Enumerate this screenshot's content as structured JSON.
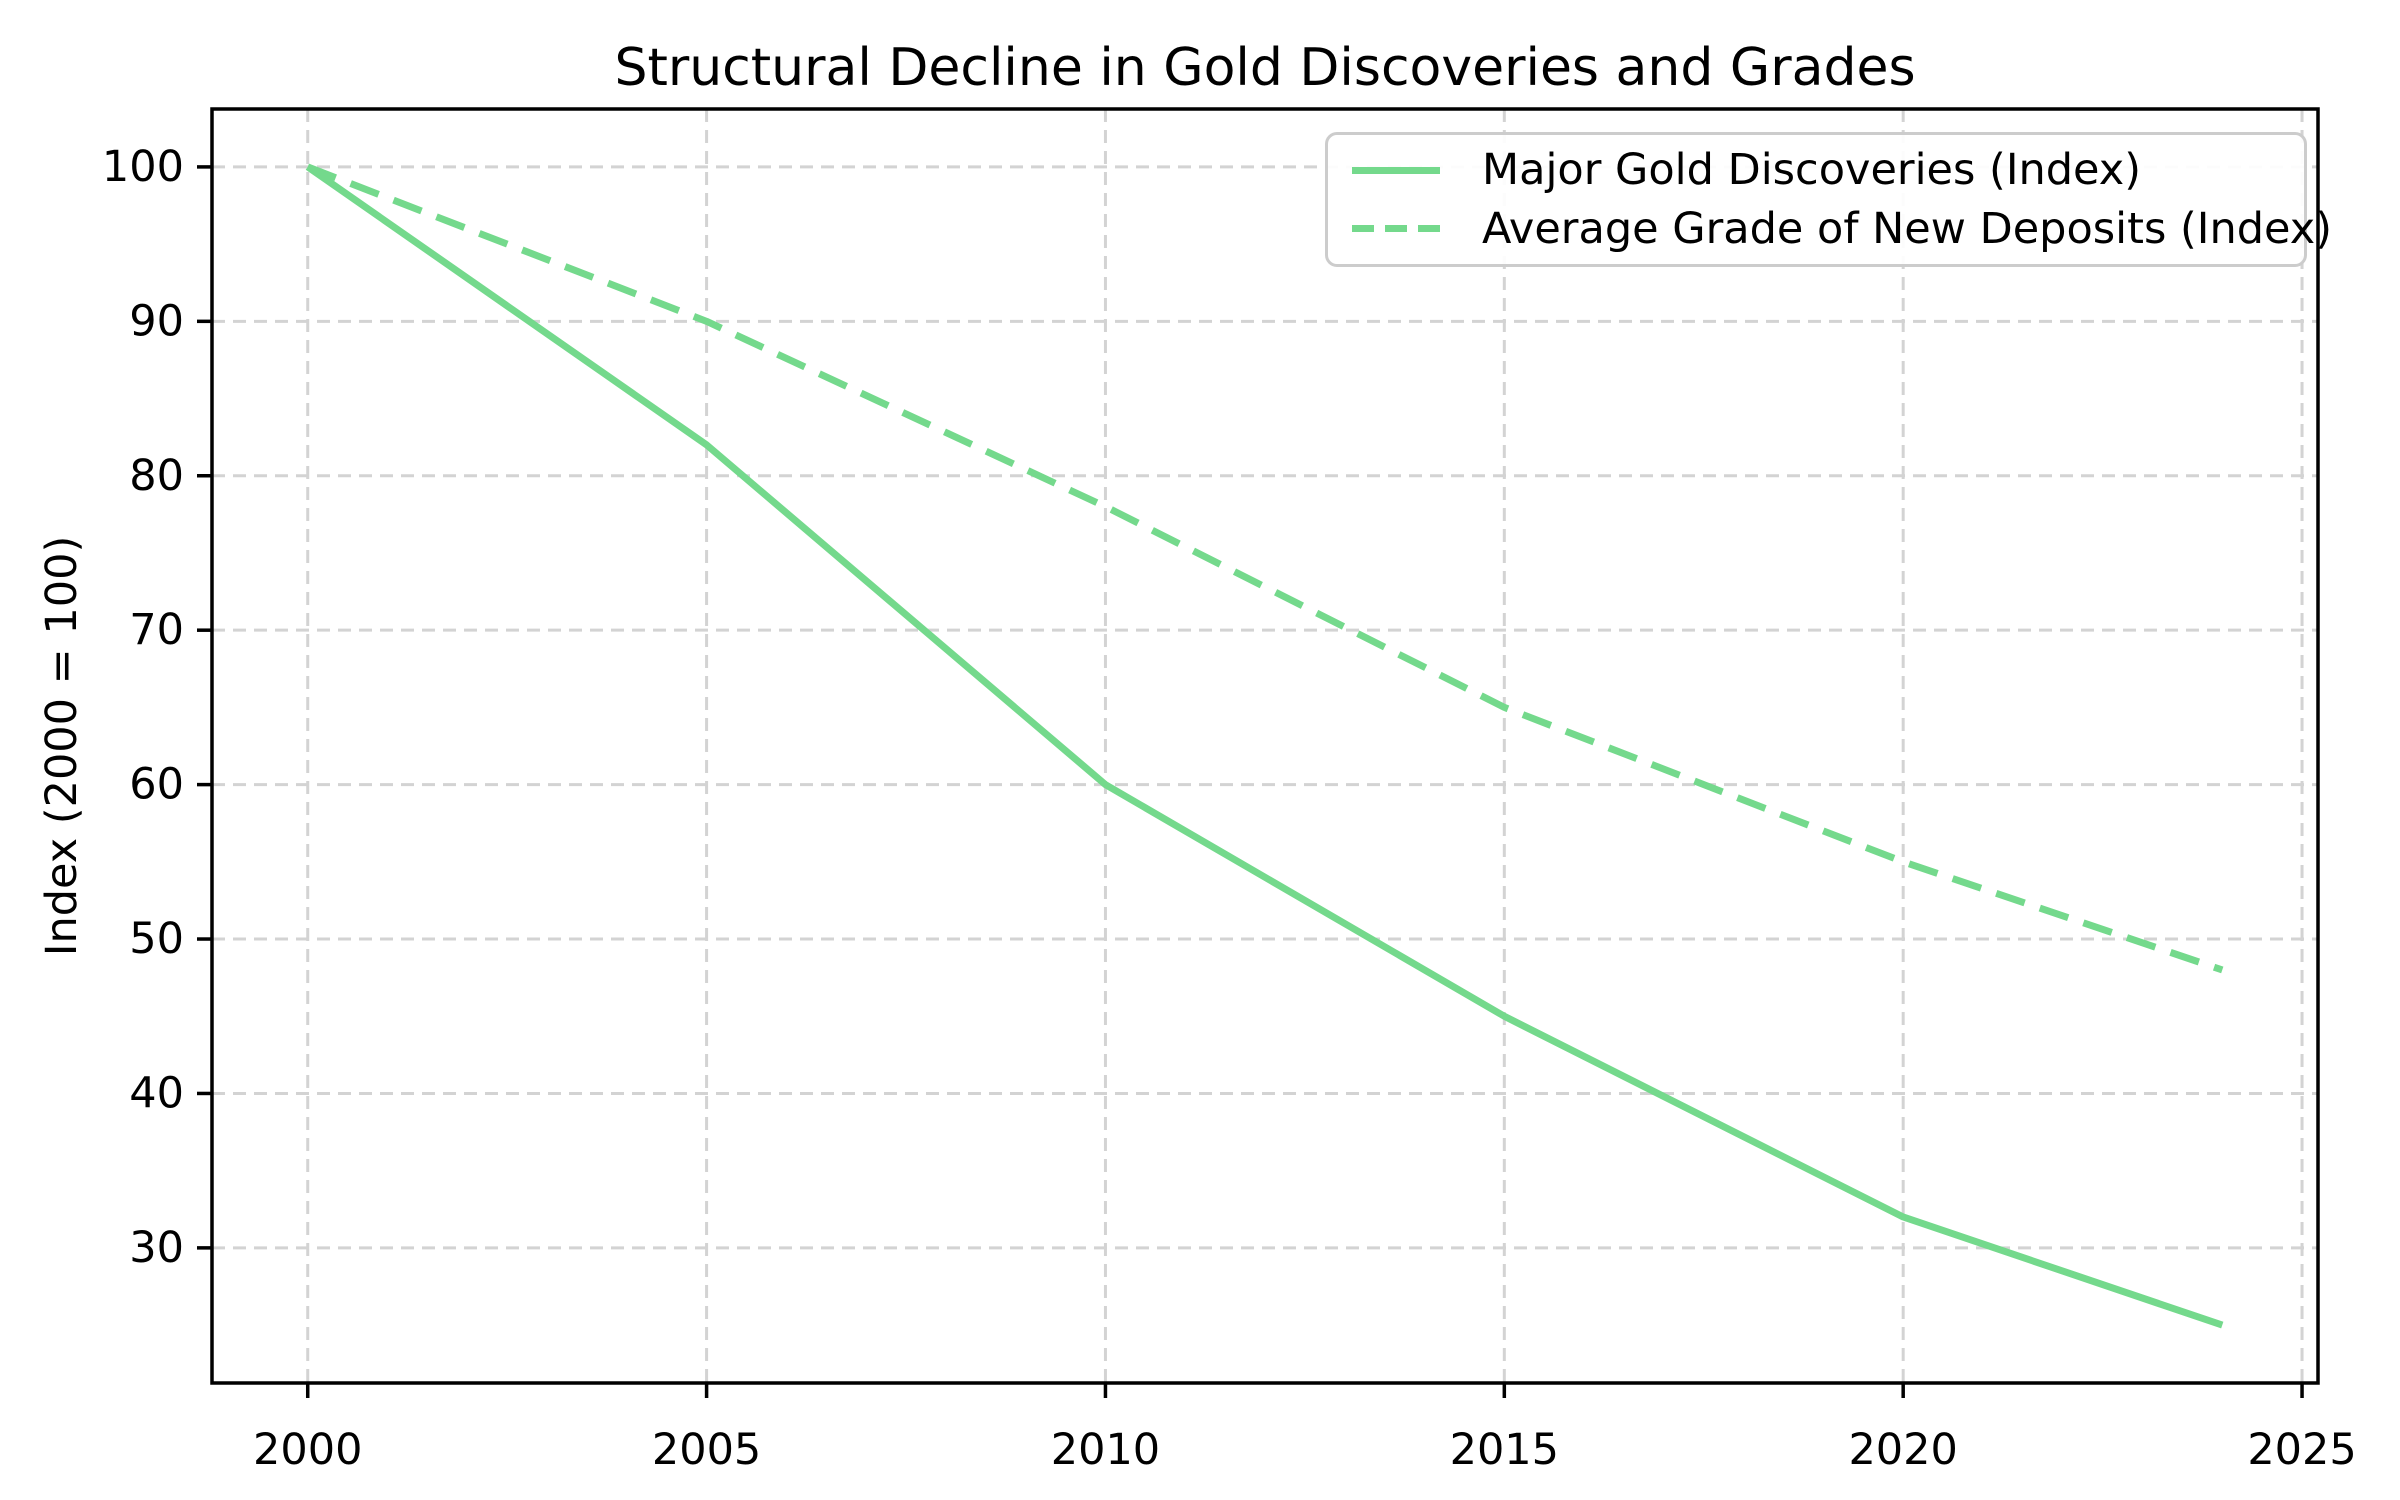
{
  "chart_data": {
    "type": "line",
    "title": "Structural Decline in Gold Discoveries and Grades",
    "xlabel": "",
    "ylabel": "Index (2000 = 100)",
    "x_ticks": [
      2000,
      2005,
      2010,
      2015,
      2020,
      2025
    ],
    "y_ticks": [
      30,
      40,
      50,
      60,
      70,
      80,
      90,
      100
    ],
    "xlim": [
      1998.8,
      2025.2
    ],
    "ylim": [
      21.25,
      103.75
    ],
    "grid": true,
    "grid_style": "dashed",
    "legend_position": "upper right",
    "x": [
      2000,
      2005,
      2010,
      2015,
      2020,
      2024
    ],
    "series": [
      {
        "name": "Major Gold Discoveries (Index)",
        "style": "solid",
        "color": "#74d98c",
        "values": [
          100,
          82,
          60,
          45,
          32,
          25
        ]
      },
      {
        "name": "Average Grade of New Deposits (Index)",
        "style": "dashed",
        "color": "#74d98c",
        "values": [
          100,
          90,
          78,
          65,
          55,
          48
        ]
      }
    ],
    "colors": {
      "line": "#74d98c",
      "grid": "#d3d3d3",
      "axis": "#000000",
      "text": "#000000",
      "legend_border": "#cccccc",
      "background": "#ffffff"
    }
  }
}
